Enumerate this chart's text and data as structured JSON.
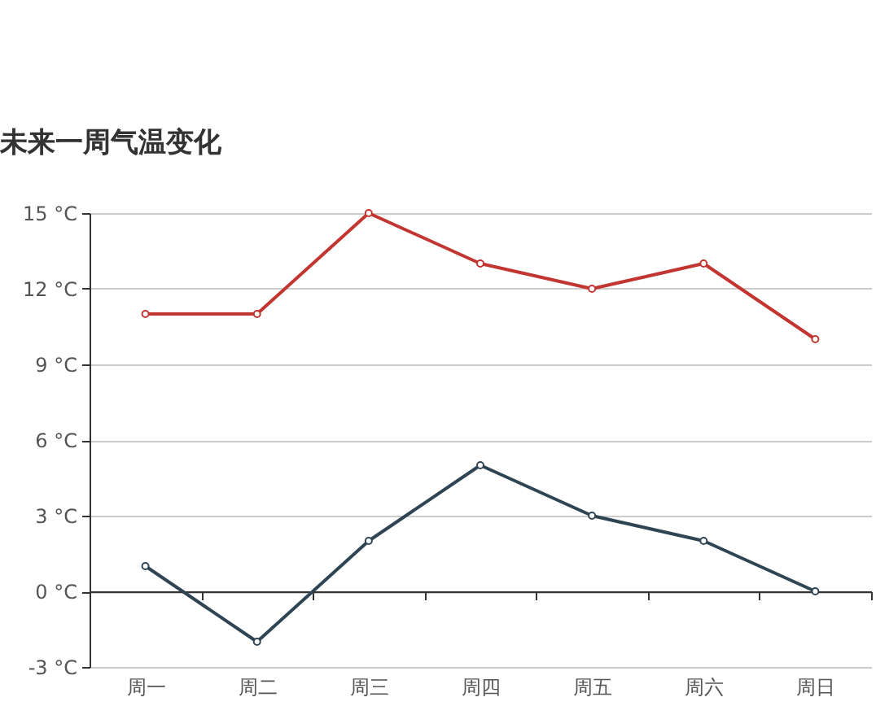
{
  "chart_data": {
    "type": "line",
    "title": "未来一周气温变化",
    "categories": [
      "周一",
      "周二",
      "周三",
      "周四",
      "周五",
      "周六",
      "周日"
    ],
    "series": [
      {
        "color": "#c23531",
        "values": [
          11,
          11,
          15,
          13,
          12,
          13,
          10
        ]
      },
      {
        "color": "#2f4554",
        "values": [
          1,
          -2,
          2,
          5,
          3,
          2,
          0
        ]
      }
    ],
    "ylim": [
      -3,
      15
    ],
    "yticks": [
      {
        "value": -3,
        "label": "-3 °C"
      },
      {
        "value": 0,
        "label": "0 °C"
      },
      {
        "value": 3,
        "label": "3 °C"
      },
      {
        "value": 6,
        "label": "6 °C"
      },
      {
        "value": 9,
        "label": "9 °C"
      },
      {
        "value": 12,
        "label": "12 °C"
      },
      {
        "value": 15,
        "label": "15 °C"
      }
    ],
    "grid": "y",
    "marker": "circle",
    "line_style": "solid"
  }
}
